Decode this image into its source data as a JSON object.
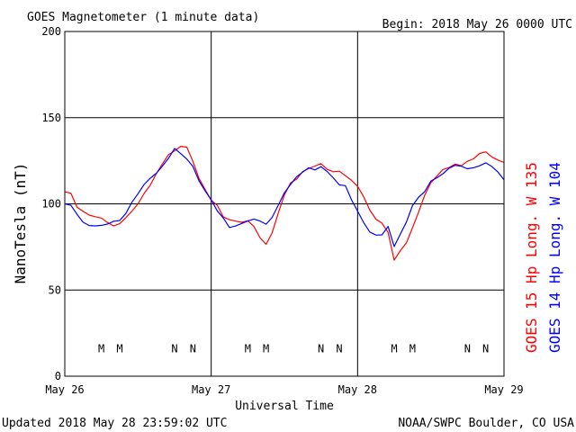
{
  "header": {
    "title": "GOES Magnetometer (1 minute data)",
    "begin": "Begin:  2018 May 26 0000 UTC"
  },
  "footer": {
    "updated": "Updated 2018 May 28 23:59:02 UTC",
    "source": "NOAA/SWPC Boulder, CO USA"
  },
  "colors": {
    "goes15": "#ff0000",
    "goes14": "#0000ff",
    "grid": "#000000"
  },
  "chart_data": {
    "type": "line",
    "title": "GOES Magnetometer (1 minute data)",
    "xlabel": "Universal Time",
    "ylabel": "NanoTesla (nT)",
    "ylim": [
      0,
      200
    ],
    "yticks": [
      0,
      50,
      100,
      150,
      200
    ],
    "xlim": [
      0,
      72
    ],
    "xticks": [
      {
        "x": 0,
        "label": "May 26"
      },
      {
        "x": 24,
        "label": "May 27"
      },
      {
        "x": 48,
        "label": "May 28"
      },
      {
        "x": 72,
        "label": "May 29"
      }
    ],
    "grid": true,
    "series": [
      {
        "name": "GOES 15 Hp  Long. W 135",
        "color": "#ff0000",
        "x": [
          0,
          1,
          2,
          3,
          4,
          5,
          6,
          7,
          8,
          9,
          10,
          11,
          12,
          13,
          14,
          15,
          16,
          17,
          18,
          19,
          20,
          21,
          22,
          23,
          24,
          25,
          26,
          27,
          28,
          29,
          30,
          31,
          32,
          33,
          34,
          35,
          36,
          37,
          38,
          39,
          40,
          41,
          42,
          43,
          44,
          45,
          46,
          47,
          48,
          49,
          50,
          51,
          52,
          53,
          54,
          55,
          56,
          57,
          58,
          59,
          60,
          61,
          62,
          63,
          64,
          65,
          66,
          67,
          68,
          69,
          70,
          71,
          72
        ],
        "values": [
          107,
          105,
          98,
          95,
          93,
          92,
          91,
          89,
          88,
          89,
          92,
          96,
          101,
          106,
          111,
          117,
          122,
          128,
          130,
          133,
          132,
          124,
          114,
          109,
          103,
          100,
          93,
          92,
          91,
          90,
          89,
          86,
          80,
          76,
          83,
          94,
          104,
          111,
          115,
          119,
          121,
          122,
          124,
          121,
          119,
          118,
          116,
          113,
          110,
          104,
          96,
          91,
          89,
          84,
          68,
          73,
          78,
          87,
          96,
          106,
          112,
          116,
          119,
          121,
          123,
          122,
          124,
          127,
          130,
          131,
          128,
          126,
          124
        ]
      },
      {
        "name": "GOES 14 Hp  Long. W 104",
        "color": "#0000ff",
        "x": [
          0,
          1,
          2,
          3,
          4,
          5,
          6,
          7,
          8,
          9,
          10,
          11,
          12,
          13,
          14,
          15,
          16,
          17,
          18,
          19,
          20,
          21,
          22,
          23,
          24,
          25,
          26,
          27,
          28,
          29,
          30,
          31,
          32,
          33,
          34,
          35,
          36,
          37,
          38,
          39,
          40,
          41,
          42,
          43,
          44,
          45,
          46,
          47,
          48,
          49,
          50,
          51,
          52,
          53,
          54,
          55,
          56,
          57,
          58,
          59,
          60,
          61,
          62,
          63,
          64,
          65,
          66,
          67,
          68,
          69,
          70,
          71,
          72
        ],
        "values": [
          100,
          98,
          93,
          89,
          87,
          88,
          88,
          89,
          90,
          91,
          95,
          101,
          106,
          111,
          114,
          117,
          121,
          126,
          132,
          128,
          127,
          122,
          114,
          108,
          103,
          97,
          92,
          87,
          87,
          88,
          89,
          90,
          90,
          88,
          92,
          100,
          107,
          112,
          116,
          119,
          121,
          120,
          122,
          118,
          114,
          111,
          110,
          102,
          95,
          89,
          84,
          82,
          83,
          88,
          76,
          83,
          90,
          98,
          103,
          107,
          112,
          114,
          117,
          120,
          122,
          123,
          121,
          122,
          123,
          125,
          122,
          119,
          114
        ]
      }
    ],
    "annotations": [
      {
        "text": "M",
        "x": 6.0,
        "series": "GOES 14 Hp  Long. W 104"
      },
      {
        "text": "M",
        "x": 9.0,
        "series": "GOES 15 Hp  Long. W 135"
      },
      {
        "text": "N",
        "x": 18.0,
        "series": "GOES 14 Hp  Long. W 104"
      },
      {
        "text": "N",
        "x": 21.0,
        "series": "GOES 15 Hp  Long. W 135"
      },
      {
        "text": "M",
        "x": 30.0,
        "series": "GOES 14 Hp  Long. W 104"
      },
      {
        "text": "M",
        "x": 33.0,
        "series": "GOES 15 Hp  Long. W 135"
      },
      {
        "text": "N",
        "x": 42.0,
        "series": "GOES 14 Hp  Long. W 104"
      },
      {
        "text": "N",
        "x": 45.0,
        "series": "GOES 15 Hp  Long. W 135"
      },
      {
        "text": "M",
        "x": 54.0,
        "series": "GOES 14 Hp  Long. W 104"
      },
      {
        "text": "M",
        "x": 57.0,
        "series": "GOES 15 Hp  Long. W 135"
      },
      {
        "text": "N",
        "x": 66.0,
        "series": "GOES 14 Hp  Long. W 104"
      },
      {
        "text": "N",
        "x": 69.0,
        "series": "GOES 15 Hp  Long. W 135"
      }
    ]
  }
}
